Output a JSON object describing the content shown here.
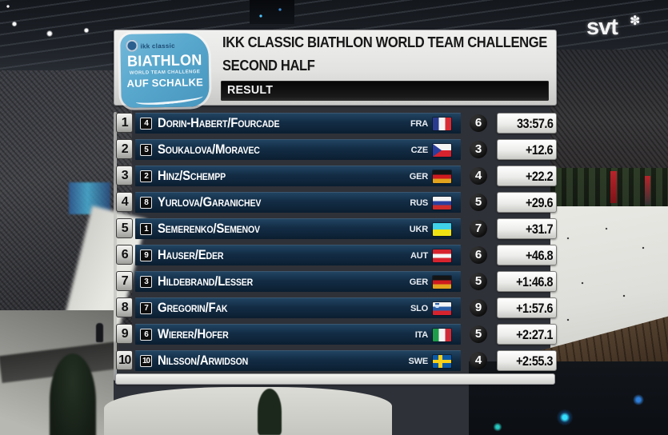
{
  "broadcaster": {
    "logo_text": "svt",
    "star_glyph": "✽"
  },
  "scoreboard": {
    "logo": {
      "brand_small": "ikk classic",
      "title": "BIATHLON",
      "subtitle": "WORLD TEAM CHALLENGE",
      "location": "AUF SCHALKE"
    },
    "header": {
      "title_line1": "IKK CLASSIC BIATHLON WORLD TEAM CHALLENGE",
      "title_line2": "SECOND HALF",
      "section_label": "RESULT"
    },
    "rows": [
      {
        "rank": "1",
        "bib": "4",
        "team": "Dorin-Habert/Fourcade",
        "country": "FRA",
        "misses": "6",
        "time": "33:57.6"
      },
      {
        "rank": "2",
        "bib": "5",
        "team": "Soukalova/Moravec",
        "country": "CZE",
        "misses": "3",
        "time": "+12.6"
      },
      {
        "rank": "3",
        "bib": "2",
        "team": "Hinz/Schempp",
        "country": "GER",
        "misses": "4",
        "time": "+22.2"
      },
      {
        "rank": "4",
        "bib": "8",
        "team": "Yurlova/Garanichev",
        "country": "RUS",
        "misses": "5",
        "time": "+29.6"
      },
      {
        "rank": "5",
        "bib": "1",
        "team": "Semerenko/Semenov",
        "country": "UKR",
        "misses": "7",
        "time": "+31.7"
      },
      {
        "rank": "6",
        "bib": "9",
        "team": "Hauser/Eder",
        "country": "AUT",
        "misses": "6",
        "time": "+46.8"
      },
      {
        "rank": "7",
        "bib": "3",
        "team": "Hildebrand/Lesser",
        "country": "GER",
        "misses": "5",
        "time": "+1:46.8"
      },
      {
        "rank": "8",
        "bib": "7",
        "team": "Gregorin/Fak",
        "country": "SLO",
        "misses": "9",
        "time": "+1:57.6"
      },
      {
        "rank": "9",
        "bib": "6",
        "team": "Wierer/Hofer",
        "country": "ITA",
        "misses": "5",
        "time": "+2:27.1"
      },
      {
        "rank": "10",
        "bib": "10",
        "team": "Nilsson/Arwidson",
        "country": "SWE",
        "misses": "4",
        "time": "+2:55.3"
      }
    ],
    "colors": {
      "row_bar_navy": "#142e47",
      "rank_silver": "#cfcfcc",
      "time_box_white": "#ececea",
      "result_bar_black": "#0a0a0a",
      "logo_blue": "#58a7cd"
    }
  }
}
